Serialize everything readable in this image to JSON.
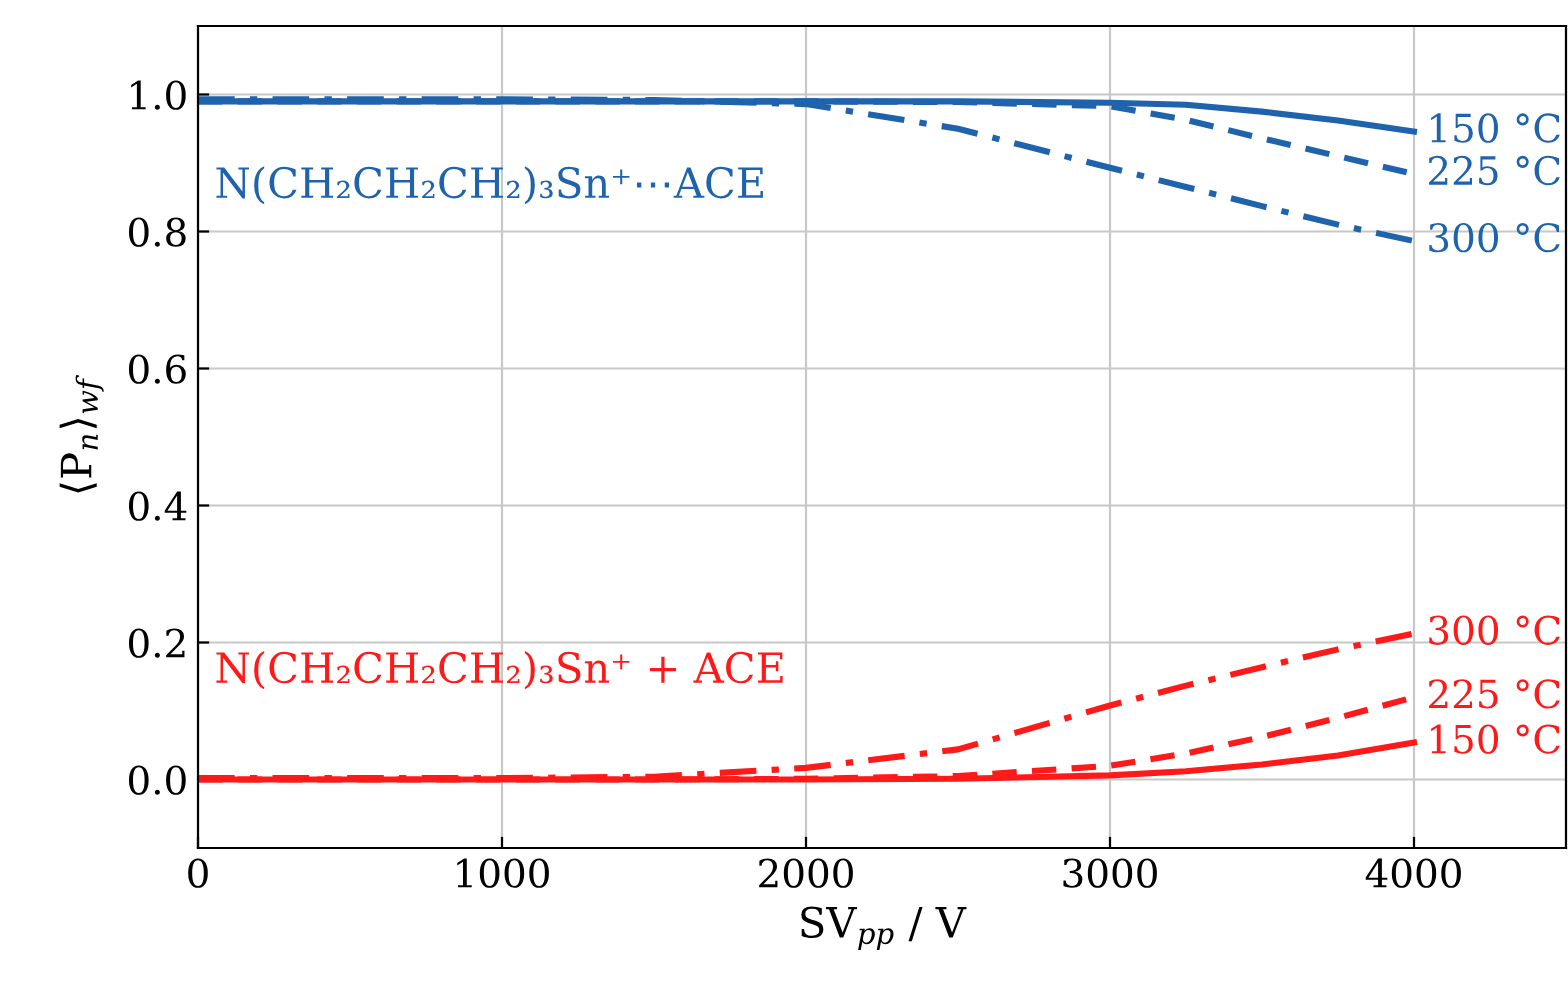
{
  "chart_data": {
    "type": "line",
    "xlabel": "SV$_{pp}$ / V",
    "ylabel": "⟨P$_{n}$⟩$_{wf}$",
    "x": [
      0,
      500,
      1000,
      1500,
      2000,
      2500,
      3000,
      3250,
      3500,
      3750,
      4000
    ],
    "series": [
      {
        "name": "150 °C",
        "color": "#1f63ad",
        "line_style": "solid",
        "values": [
          0.99,
          0.99,
          0.99,
          0.99,
          0.99,
          0.99,
          0.988,
          0.985,
          0.975,
          0.962,
          0.946
        ]
      },
      {
        "name": "225 °C",
        "color": "#1f63ad",
        "line_style": "dashed",
        "values": [
          0.99,
          0.99,
          0.99,
          0.99,
          0.99,
          0.989,
          0.983,
          0.963,
          0.936,
          0.91,
          0.884
        ]
      },
      {
        "name": "300 °C",
        "color": "#1f63ad",
        "line_style": "dashdot",
        "values": [
          0.993,
          0.993,
          0.993,
          0.992,
          0.986,
          0.95,
          0.893,
          0.865,
          0.837,
          0.81,
          0.786
        ]
      },
      {
        "name": "300 °C",
        "color": "#ff1a1a",
        "line_style": "dashdot",
        "values": [
          0.002,
          0.002,
          0.002,
          0.004,
          0.017,
          0.044,
          0.108,
          0.137,
          0.164,
          0.19,
          0.213
        ]
      },
      {
        "name": "225 °C",
        "color": "#ff1a1a",
        "line_style": "dashed",
        "values": [
          0.0,
          0.0,
          0.0,
          0.0,
          0.001,
          0.005,
          0.02,
          0.038,
          0.062,
          0.09,
          0.12
        ]
      },
      {
        "name": "150 °C",
        "color": "#ff1a1a",
        "line_style": "solid",
        "values": [
          0.0,
          0.0,
          0.0,
          0.0,
          0.0,
          0.001,
          0.006,
          0.012,
          0.022,
          0.035,
          0.054
        ]
      }
    ],
    "annotations": [
      "N(CH₂CH₂CH₂)₃Sn⁺⋯ACE",
      "N(CH₂CH₂CH₂)₃Sn⁺ + ACE"
    ],
    "xlim": [
      0,
      4500
    ],
    "xticks": [
      0,
      1000,
      2000,
      3000,
      4000
    ],
    "ylim": [
      -0.1,
      1.1
    ],
    "yticks": [
      {
        "value": 0,
        "label": "0.0"
      },
      0.2,
      0.4,
      0.6,
      0.8,
      {
        "value": 1,
        "label": "1.0"
      }
    ],
    "grid": true,
    "legend": false
  }
}
